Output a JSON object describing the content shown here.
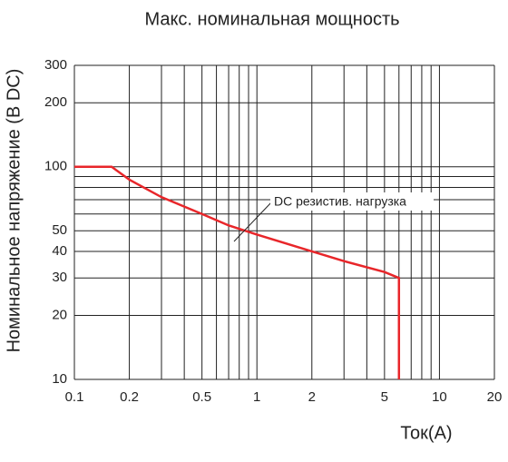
{
  "chart_data": {
    "type": "line",
    "title": "Макс. номинальная мощность",
    "x_label": "Ток(A)",
    "y_label": "Номинальное напряжение (В DC)",
    "log_x": true,
    "log_y": true,
    "grid": true,
    "xlim": [
      0.1,
      20
    ],
    "ylim": [
      10,
      300
    ],
    "xticks": [
      0.1,
      0.2,
      0.5,
      1,
      2,
      5,
      10,
      20
    ],
    "yticks": [
      10,
      20,
      30,
      40,
      50,
      100,
      200,
      300
    ],
    "x_grid": [
      0.1,
      0.2,
      0.3,
      0.4,
      0.5,
      0.6,
      0.7,
      0.8,
      0.9,
      1,
      2,
      3,
      4,
      5,
      6,
      7,
      8,
      9,
      10,
      20
    ],
    "y_grid": [
      10,
      20,
      30,
      40,
      50,
      60,
      70,
      80,
      90,
      100,
      200,
      300
    ],
    "annotation": "DC резистив. нагрузка",
    "series": [
      {
        "name": "DC резистив. нагрузка",
        "color": "#e8262a",
        "x": [
          0.1,
          0.16,
          0.2,
          0.3,
          0.5,
          0.7,
          1,
          2,
          3,
          5,
          6,
          6
        ],
        "values": [
          100,
          100,
          87,
          72,
          60,
          53,
          48,
          40,
          36,
          32,
          30,
          10
        ]
      }
    ]
  }
}
